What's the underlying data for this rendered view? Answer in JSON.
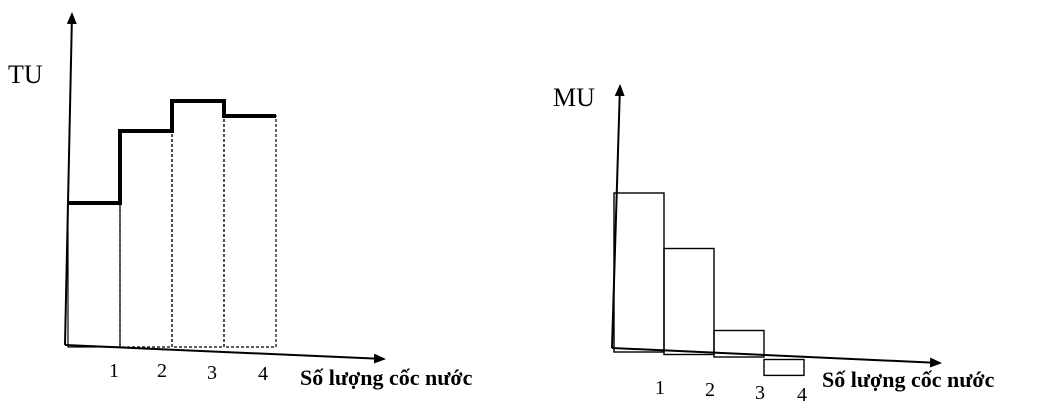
{
  "chart_data": [
    {
      "type": "bar",
      "ylabel": "TU",
      "xlabel": "Số lượng cốc nước",
      "categories": [
        "1",
        "2",
        "3",
        "4"
      ],
      "values": [
        48,
        72,
        82,
        77
      ]
    },
    {
      "type": "bar",
      "ylabel": "MU",
      "xlabel": "Số lượng cốc nước",
      "categories": [
        "1",
        "2",
        "3",
        "4"
      ],
      "values": [
        30,
        20,
        5,
        -3
      ]
    }
  ]
}
